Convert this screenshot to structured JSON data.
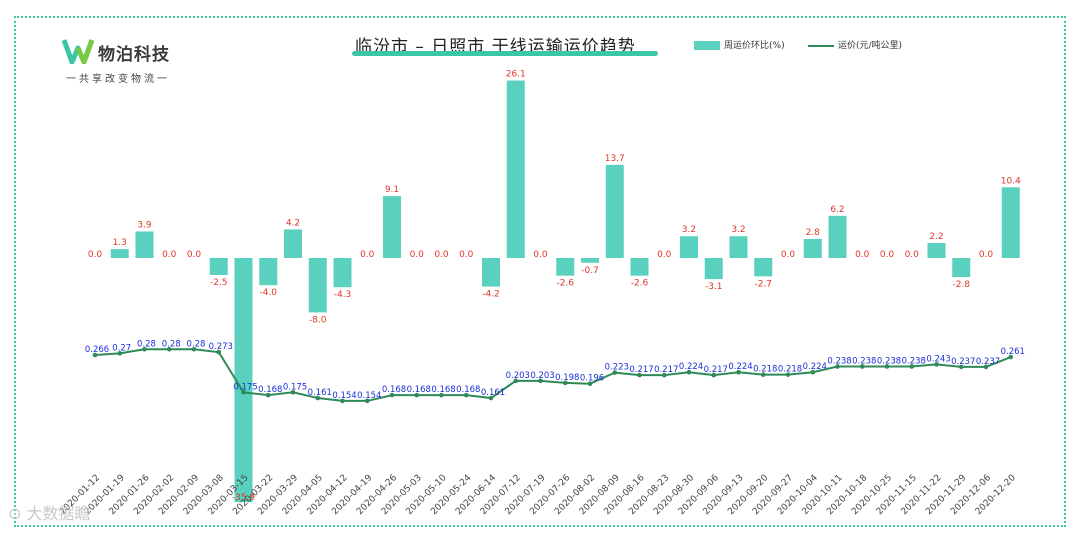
{
  "logo": {
    "name": "物泊科技",
    "slogan": "一共享改变物流一"
  },
  "watermark": {
    "text": "大数据瞻"
  },
  "colors": {
    "bar": "#5ad1bf",
    "line": "#2e8b57",
    "bar_label": "#e0362b",
    "line_label": "#1a2fd6",
    "frame": "#3dc6a6"
  },
  "chart_data": {
    "type": "bar",
    "title": "临汾市 – 日照市 干线运输运价趋势",
    "legend_position": "top-right",
    "categories": [
      "2020-01-12",
      "2020-01-19",
      "2020-01-26",
      "2020-02-02",
      "2020-02-09",
      "2020-03-08",
      "2020-03-15",
      "2020-03-22",
      "2020-03-29",
      "2020-04-05",
      "2020-04-12",
      "2020-04-19",
      "2020-04-26",
      "2020-05-03",
      "2020-05-10",
      "2020-05-24",
      "2020-06-14",
      "2020-07-12",
      "2020-07-19",
      "2020-07-26",
      "2020-08-02",
      "2020-08-09",
      "2020-08-16",
      "2020-08-23",
      "2020-08-30",
      "2020-09-06",
      "2020-09-13",
      "2020-09-20",
      "2020-09-27",
      "2020-10-04",
      "2020-10-11",
      "2020-10-18",
      "2020-10-25",
      "2020-11-15",
      "2020-11-22",
      "2020-11-29",
      "2020-12-06",
      "2020-12-20"
    ],
    "series": [
      {
        "name": "周运价环比(%)",
        "kind": "bar",
        "values": [
          0.0,
          1.3,
          3.9,
          0.0,
          0.0,
          -2.5,
          -35.9,
          -4.0,
          4.2,
          -8.0,
          -4.3,
          0.0,
          9.1,
          0.0,
          0.0,
          0.0,
          -4.2,
          26.1,
          0.0,
          -2.6,
          -0.7,
          13.7,
          -2.6,
          0.0,
          3.2,
          -3.1,
          3.2,
          -2.7,
          0.0,
          2.8,
          6.2,
          0.0,
          0.0,
          0.0,
          2.2,
          -2.8,
          0.0,
          10.4
        ],
        "labels": [
          "0.0",
          "1.3",
          "3.9",
          "0.0",
          "0.0",
          "-2.5",
          "-35.9",
          "-4.0",
          "4.2",
          "-8.0",
          "-4.3",
          "0.0",
          "9.1",
          "0.0",
          "0.0",
          "0.0",
          "-4.2",
          "26.1",
          "0.0",
          "-2.6",
          "-0.7",
          "13.7",
          "-2.6",
          "0.0",
          "3.2",
          "-3.1",
          "3.2",
          "-2.7",
          "0.0",
          "2.8",
          "6.2",
          "0.0",
          "0.0",
          "0.0",
          "2.2",
          "-2.8",
          "0.0",
          "10.4"
        ]
      },
      {
        "name": "运价(元/吨公里)",
        "kind": "line",
        "values": [
          0.266,
          0.27,
          0.28,
          0.28,
          0.28,
          0.273,
          0.175,
          0.168,
          0.175,
          0.161,
          0.154,
          0.154,
          0.168,
          0.168,
          0.168,
          0.168,
          0.161,
          0.203,
          0.203,
          0.198,
          0.196,
          0.223,
          0.217,
          0.217,
          0.224,
          0.217,
          0.224,
          0.218,
          0.218,
          0.224,
          0.238,
          0.238,
          0.238,
          0.238,
          0.243,
          0.237,
          0.237,
          0.261
        ],
        "labels": [
          "0.266",
          "0.27",
          "0.28",
          "0.28",
          "0.28",
          "0.273",
          "0.175",
          "0.168",
          "0.175",
          "0.161",
          "0.154",
          "0.154",
          "0.168",
          "0.168",
          "0.168",
          "0.168",
          "0.161",
          "0.203",
          "0.203",
          "0.198",
          "0.196",
          "0.223",
          "0.217",
          "0.217",
          "0.224",
          "0.217",
          "0.224",
          "0.218",
          "0.218",
          "0.224",
          "0.238",
          "0.238",
          "0.238",
          "0.238",
          "0.243",
          "0.237",
          "0.237",
          "0.261"
        ]
      }
    ]
  }
}
